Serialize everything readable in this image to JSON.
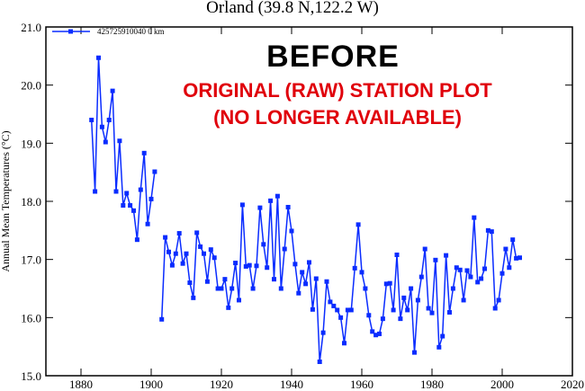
{
  "chart_data": {
    "type": "line",
    "title": "Orland (39.8 N,122.2 W)",
    "xlabel": "",
    "ylabel": "Annual Mean Temperatures (°C)",
    "xlim": [
      1870,
      2020
    ],
    "ylim": [
      15.0,
      21.0
    ],
    "xticks": [
      "1880",
      "1900",
      "1920",
      "1940",
      "1960",
      "1980",
      "2000",
      "2020"
    ],
    "yticks": [
      "15.0",
      "16.0",
      "17.0",
      "18.0",
      "19.0",
      "20.0",
      "21.0"
    ],
    "legend": {
      "placement": "top-left",
      "entries": [
        "425725910040  0 km"
      ]
    },
    "grid": false,
    "color": "#0a2cff",
    "annotations": [
      "BEFORE",
      "ORIGINAL (RAW) STATION PLOT",
      "(NO LONGER AVAILABLE)"
    ],
    "series": [
      {
        "name": "425725910040  0 km",
        "x": [
          1883,
          1884,
          1885,
          1886,
          1887,
          1888,
          1889,
          1890,
          1891,
          1892,
          1893,
          1894,
          1895,
          1896,
          1897,
          1898,
          1899,
          1900,
          1901,
          1902,
          1903,
          1904,
          1905,
          1906,
          1907,
          1908,
          1909,
          1910,
          1911,
          1912,
          1913,
          1914,
          1915,
          1916,
          1917,
          1918,
          1919,
          1920,
          1921,
          1922,
          1923,
          1924,
          1925,
          1926,
          1927,
          1928,
          1929,
          1930,
          1931,
          1932,
          1933,
          1934,
          1935,
          1936,
          1937,
          1938,
          1939,
          1940,
          1941,
          1942,
          1943,
          1944,
          1945,
          1946,
          1947,
          1948,
          1949,
          1950,
          1951,
          1952,
          1953,
          1954,
          1955,
          1956,
          1957,
          1958,
          1959,
          1960,
          1961,
          1962,
          1963,
          1964,
          1965,
          1966,
          1967,
          1968,
          1969,
          1970,
          1971,
          1972,
          1973,
          1974,
          1975,
          1976,
          1977,
          1978,
          1979,
          1980,
          1981,
          1982,
          1983,
          1984,
          1985,
          1986,
          1987,
          1988,
          1989,
          1990,
          1991,
          1992,
          1993,
          1994,
          1995,
          1996,
          1997,
          1998,
          1999,
          2000,
          2001,
          2002,
          2003,
          2004,
          2005
        ],
        "y": [
          19.4,
          18.17,
          20.47,
          19.28,
          19.02,
          19.4,
          19.9,
          18.17,
          19.04,
          17.93,
          18.14,
          17.93,
          17.84,
          17.34,
          18.2,
          18.83,
          17.61,
          18.04,
          18.51,
          null,
          15.97,
          17.38,
          17.13,
          16.9,
          17.1,
          17.45,
          16.93,
          17.1,
          16.6,
          16.34,
          17.46,
          17.22,
          17.1,
          16.62,
          17.17,
          17.03,
          16.5,
          16.5,
          16.66,
          16.17,
          16.5,
          16.94,
          16.3,
          17.94,
          16.88,
          16.9,
          16.5,
          16.89,
          17.89,
          17.26,
          16.86,
          18.01,
          16.66,
          18.09,
          16.5,
          17.18,
          17.9,
          17.49,
          16.92,
          16.42,
          16.78,
          16.58,
          16.95,
          16.14,
          16.67,
          15.24,
          15.74,
          16.62,
          16.27,
          16.2,
          16.13,
          16.0,
          15.56,
          16.13,
          16.13,
          16.85,
          17.6,
          16.78,
          16.5,
          16.04,
          15.76,
          15.7,
          15.72,
          15.98,
          16.58,
          16.59,
          16.13,
          17.08,
          15.98,
          16.34,
          16.13,
          16.5,
          15.4,
          16.3,
          16.7,
          17.18,
          16.16,
          16.08,
          16.99,
          15.49,
          15.68,
          17.07,
          16.09,
          16.5,
          16.86,
          16.82,
          16.3,
          16.81,
          16.7,
          17.72,
          16.61,
          16.67,
          16.84,
          17.5,
          17.48,
          16.16,
          16.3,
          16.76,
          17.18,
          16.86,
          17.34,
          17.02,
          17.03
        ]
      }
    ]
  }
}
